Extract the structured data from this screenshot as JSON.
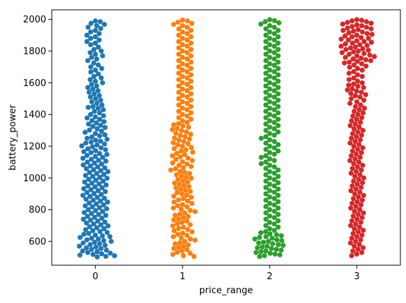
{
  "chart_data": {
    "type": "scatter",
    "subtype": "swarm",
    "title": "",
    "xlabel": "price_range",
    "ylabel": "battery_power",
    "categories": [
      "0",
      "1",
      "2",
      "3"
    ],
    "ylim": [
      450,
      2060
    ],
    "yticks": [
      600,
      800,
      1000,
      1200,
      1400,
      1600,
      1800,
      2000
    ],
    "grid": false,
    "legend": "none",
    "series": [
      {
        "category": "0",
        "color": "#1f77b4",
        "values": [
          1990,
          1985,
          1975,
          1968,
          1960,
          1950,
          1942,
          1930,
          1920,
          1910,
          1900,
          1890,
          1880,
          1870,
          1860,
          1850,
          1840,
          1825,
          1810,
          1800,
          1790,
          1780,
          1770,
          1760,
          1750,
          1740,
          1725,
          1712,
          1700,
          1690,
          1680,
          1668,
          1655,
          1640,
          1630,
          1620,
          1610,
          1600,
          1590,
          1580,
          1570,
          1560,
          1550,
          1540,
          1530,
          1520,
          1510,
          1500,
          1490,
          1480,
          1470,
          1460,
          1450,
          1445,
          1440,
          1430,
          1420,
          1410,
          1400,
          1392,
          1385,
          1378,
          1370,
          1362,
          1355,
          1347,
          1340,
          1332,
          1325,
          1318,
          1310,
          1302,
          1295,
          1288,
          1280,
          1272,
          1265,
          1258,
          1250,
          1244,
          1238,
          1232,
          1226,
          1220,
          1214,
          1208,
          1202,
          1196,
          1190,
          1184,
          1178,
          1172,
          1166,
          1160,
          1154,
          1148,
          1142,
          1136,
          1130,
          1124,
          1118,
          1112,
          1106,
          1100,
          1094,
          1088,
          1082,
          1076,
          1070,
          1064,
          1058,
          1052,
          1046,
          1040,
          1034,
          1028,
          1022,
          1016,
          1010,
          1004,
          998,
          992,
          986,
          980,
          974,
          968,
          962,
          956,
          950,
          944,
          938,
          932,
          926,
          920,
          914,
          908,
          902,
          896,
          890,
          884,
          878,
          872,
          866,
          860,
          854,
          848,
          842,
          836,
          830,
          824,
          818,
          812,
          806,
          800,
          794,
          788,
          782,
          776,
          770,
          764,
          758,
          752,
          746,
          740,
          734,
          728,
          722,
          716,
          710,
          704,
          698,
          692,
          686,
          680,
          674,
          668,
          662,
          656,
          650,
          645,
          640,
          635,
          630,
          625,
          620,
          615,
          610,
          605,
          600,
          595,
          590,
          585,
          580,
          575,
          570,
          565,
          560,
          555,
          550,
          545,
          540,
          535,
          530,
          526,
          522,
          518,
          514,
          510,
          506,
          502
        ]
      },
      {
        "category": "1",
        "color": "#ff7f0e",
        "values": [
          1995,
          1990,
          1982,
          1975,
          1968,
          1960,
          1950,
          1940,
          1930,
          1920,
          1910,
          1900,
          1890,
          1880,
          1870,
          1860,
          1850,
          1840,
          1830,
          1820,
          1810,
          1800,
          1790,
          1780,
          1770,
          1760,
          1750,
          1740,
          1730,
          1720,
          1710,
          1700,
          1690,
          1680,
          1670,
          1660,
          1650,
          1640,
          1630,
          1620,
          1610,
          1600,
          1590,
          1580,
          1570,
          1560,
          1550,
          1540,
          1530,
          1520,
          1510,
          1500,
          1490,
          1480,
          1470,
          1460,
          1450,
          1440,
          1430,
          1420,
          1410,
          1400,
          1390,
          1380,
          1370,
          1360,
          1350,
          1342,
          1335,
          1328,
          1320,
          1312,
          1305,
          1298,
          1290,
          1282,
          1275,
          1268,
          1260,
          1252,
          1245,
          1238,
          1230,
          1222,
          1215,
          1208,
          1200,
          1192,
          1185,
          1178,
          1170,
          1162,
          1155,
          1148,
          1140,
          1132,
          1125,
          1118,
          1110,
          1102,
          1095,
          1088,
          1080,
          1072,
          1065,
          1058,
          1050,
          1042,
          1035,
          1028,
          1020,
          1012,
          1005,
          998,
          990,
          982,
          975,
          968,
          960,
          952,
          945,
          938,
          930,
          922,
          915,
          908,
          900,
          892,
          885,
          878,
          870,
          862,
          855,
          848,
          840,
          832,
          825,
          818,
          810,
          802,
          795,
          788,
          780,
          772,
          765,
          758,
          750,
          742,
          735,
          728,
          720,
          712,
          705,
          698,
          690,
          682,
          675,
          668,
          660,
          652,
          645,
          638,
          630,
          622,
          615,
          608,
          600,
          592,
          585,
          578,
          570,
          562,
          555,
          548,
          540,
          532,
          525,
          518,
          510,
          505
        ]
      },
      {
        "category": "2",
        "color": "#2ca02c",
        "values": [
          1998,
          1992,
          1985,
          1978,
          1970,
          1960,
          1950,
          1940,
          1930,
          1920,
          1910,
          1900,
          1890,
          1880,
          1870,
          1860,
          1850,
          1840,
          1830,
          1820,
          1810,
          1800,
          1790,
          1780,
          1770,
          1760,
          1750,
          1740,
          1730,
          1720,
          1710,
          1700,
          1690,
          1680,
          1670,
          1660,
          1650,
          1640,
          1630,
          1620,
          1610,
          1600,
          1590,
          1580,
          1570,
          1560,
          1550,
          1540,
          1530,
          1520,
          1510,
          1500,
          1490,
          1480,
          1470,
          1460,
          1450,
          1440,
          1430,
          1420,
          1410,
          1400,
          1390,
          1380,
          1370,
          1360,
          1350,
          1340,
          1330,
          1320,
          1310,
          1300,
          1290,
          1280,
          1270,
          1260,
          1250,
          1240,
          1230,
          1220,
          1210,
          1200,
          1190,
          1180,
          1170,
          1160,
          1150,
          1140,
          1130,
          1120,
          1110,
          1100,
          1090,
          1080,
          1070,
          1060,
          1050,
          1040,
          1030,
          1020,
          1010,
          1000,
          990,
          980,
          970,
          960,
          950,
          940,
          930,
          920,
          910,
          900,
          890,
          880,
          870,
          860,
          850,
          840,
          830,
          820,
          810,
          800,
          790,
          780,
          770,
          760,
          750,
          740,
          730,
          720,
          710,
          700,
          690,
          680,
          670,
          662,
          655,
          648,
          642,
          636,
          630,
          625,
          620,
          615,
          610,
          605,
          600,
          595,
          590,
          585,
          580,
          575,
          570,
          565,
          560,
          555,
          550,
          545,
          540,
          535,
          530,
          525,
          520,
          515,
          510,
          505
        ]
      },
      {
        "category": "3",
        "color": "#d62728",
        "values": [
          1998,
          1994,
          1990,
          1985,
          1980,
          1975,
          1970,
          1965,
          1960,
          1955,
          1950,
          1945,
          1940,
          1935,
          1930,
          1925,
          1920,
          1915,
          1910,
          1905,
          1900,
          1895,
          1890,
          1885,
          1880,
          1875,
          1870,
          1865,
          1860,
          1855,
          1850,
          1845,
          1840,
          1835,
          1830,
          1825,
          1820,
          1815,
          1810,
          1805,
          1800,
          1795,
          1790,
          1785,
          1780,
          1775,
          1770,
          1765,
          1760,
          1755,
          1750,
          1745,
          1740,
          1735,
          1730,
          1725,
          1720,
          1712,
          1705,
          1698,
          1690,
          1680,
          1670,
          1660,
          1650,
          1640,
          1630,
          1620,
          1610,
          1600,
          1592,
          1585,
          1578,
          1570,
          1562,
          1555,
          1548,
          1540,
          1532,
          1525,
          1518,
          1510,
          1500,
          1490,
          1480,
          1470,
          1460,
          1450,
          1440,
          1430,
          1420,
          1410,
          1400,
          1390,
          1380,
          1370,
          1360,
          1350,
          1340,
          1330,
          1320,
          1310,
          1300,
          1290,
          1280,
          1270,
          1260,
          1250,
          1240,
          1230,
          1220,
          1210,
          1200,
          1190,
          1180,
          1170,
          1160,
          1150,
          1140,
          1130,
          1120,
          1110,
          1100,
          1090,
          1080,
          1070,
          1060,
          1050,
          1040,
          1030,
          1020,
          1010,
          1000,
          990,
          980,
          970,
          960,
          950,
          940,
          930,
          920,
          910,
          900,
          890,
          880,
          870,
          860,
          850,
          840,
          830,
          820,
          810,
          800,
          790,
          780,
          770,
          760,
          750,
          740,
          730,
          720,
          710,
          700,
          690,
          680,
          670,
          660,
          650,
          640,
          630,
          620,
          610,
          600,
          590,
          580,
          570,
          560,
          550,
          540,
          530,
          520,
          510
        ]
      }
    ]
  }
}
